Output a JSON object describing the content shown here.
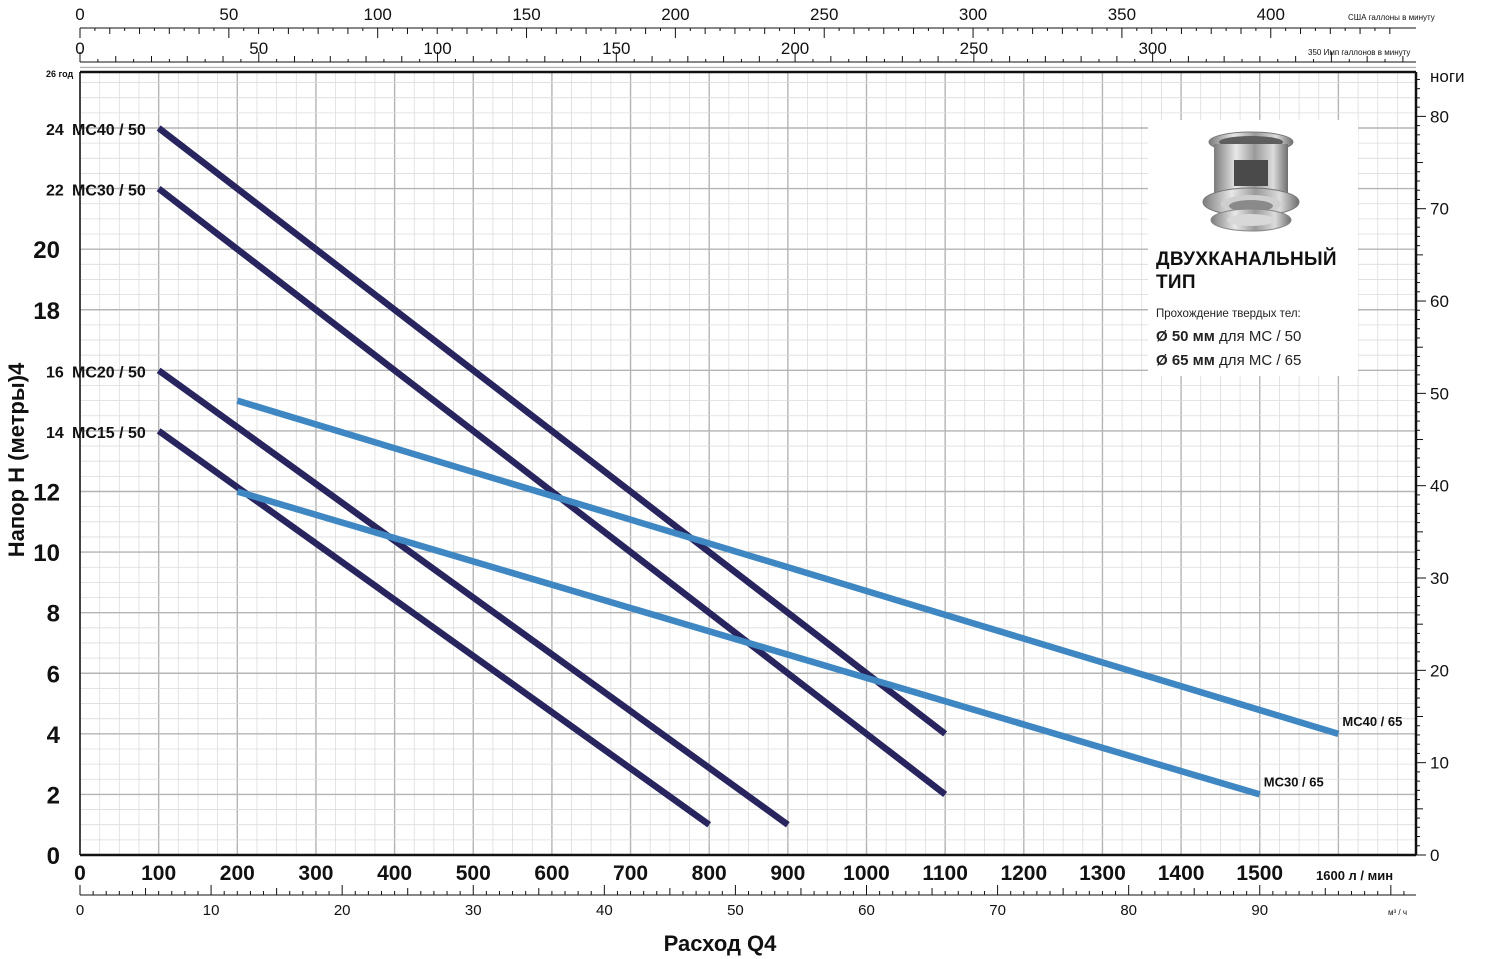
{
  "axes": {
    "ylabel": "Напор Н (метры)4",
    "xlabel": "Расход Q4",
    "y_top_label": "26 год",
    "right_unit": "ноги",
    "bottom_unit_lmin": "1600 л / мин",
    "bottom_unit_m3h": "м³ / ч",
    "top_unit_usgpm": "США галлоны в минуту",
    "top_unit_impgpm": "350 Имп галлонов в минуту"
  },
  "info": {
    "title_line1": "ДВУХКАНАЛЬНЫЙ",
    "title_line2": "ТИП",
    "subtitle": "Прохождение твердых тел:",
    "line1_bold": "Ø 50 мм",
    "line1_rest": " для МС / 50",
    "line2_bold": "Ø 65 мм",
    "line2_rest": " для МС / 65",
    "icon": "impeller-fitting-icon"
  },
  "colors": {
    "grid_major": "#b4b4b4",
    "grid_minor": "#dcdcdc",
    "mc50": "#27245e",
    "mc65": "#3e87c2",
    "axis": "#111111"
  },
  "chart_data": {
    "type": "line",
    "x_unit": "л / мин",
    "y_unit": "м",
    "xlim": [
      0,
      1700
    ],
    "ylim": [
      0,
      26
    ],
    "x_ticks": [
      0,
      100,
      200,
      300,
      400,
      500,
      600,
      700,
      800,
      900,
      1000,
      1100,
      1200,
      1300,
      1400,
      1500
    ],
    "y_ticks": [
      0,
      2,
      4,
      6,
      8,
      10,
      12,
      14,
      16,
      18,
      20,
      22,
      24
    ],
    "m3h_ticks": [
      0,
      10,
      20,
      30,
      40,
      50,
      60,
      70,
      80,
      90
    ],
    "feet_ticks": [
      0,
      10,
      20,
      30,
      40,
      50,
      60,
      70,
      80
    ],
    "usgpm_ticks": [
      0,
      50,
      100,
      150,
      200,
      250,
      300,
      350,
      400
    ],
    "impgpm_ticks": [
      0,
      50,
      100,
      150,
      200,
      250,
      300
    ],
    "grid": true,
    "series": [
      {
        "name": "МС40 / 50",
        "label": "24 МС40 / 50",
        "group": "mc50",
        "x": [
          100,
          1100
        ],
        "y": [
          24,
          4
        ]
      },
      {
        "name": "МС30 / 50",
        "label": "22 МС30 / 50",
        "group": "mc50",
        "x": [
          100,
          1100
        ],
        "y": [
          22,
          2
        ]
      },
      {
        "name": "МС20 / 50",
        "label": "16 МС20 / 50",
        "group": "mc50",
        "x": [
          100,
          900
        ],
        "y": [
          16,
          1
        ]
      },
      {
        "name": "МС15 / 50",
        "label": "14 МС15 / 50",
        "group": "mc50",
        "x": [
          100,
          800
        ],
        "y": [
          14,
          1
        ]
      },
      {
        "name": "МС40 / 65",
        "label": "МС40 / 65",
        "group": "mc65",
        "x": [
          200,
          1600
        ],
        "y": [
          15,
          4
        ]
      },
      {
        "name": "МС30 / 65",
        "label": "МС30 / 65",
        "group": "mc65",
        "x": [
          200,
          1500
        ],
        "y": [
          12,
          2
        ]
      }
    ]
  }
}
